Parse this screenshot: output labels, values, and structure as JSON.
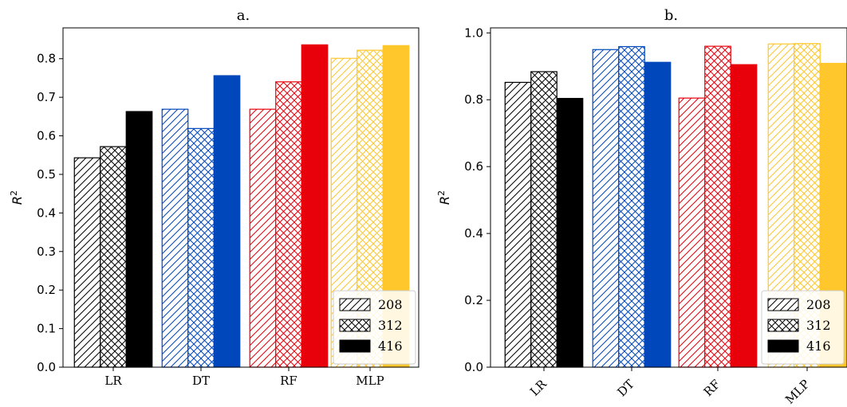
{
  "colors": {
    "LR": "#000000",
    "DT": "#0047bb",
    "RF": "#e8000b",
    "MLP": "#ffc72c"
  },
  "legend": [
    "208",
    "312",
    "416"
  ],
  "chart_data": [
    {
      "type": "bar",
      "title": "a.",
      "xlabel": "",
      "ylabel": "R",
      "ylabel_sup": "2",
      "categories": [
        "LR",
        "DT",
        "RF",
        "MLP"
      ],
      "series": [
        {
          "name": "208",
          "pattern": "hatch",
          "values": [
            0.543,
            0.669,
            0.669,
            0.801
          ]
        },
        {
          "name": "312",
          "pattern": "cross",
          "values": [
            0.572,
            0.619,
            0.74,
            0.822
          ]
        },
        {
          "name": "416",
          "pattern": "solid",
          "values": [
            0.663,
            0.756,
            0.836,
            0.834
          ]
        }
      ],
      "ylim": [
        0,
        0.88
      ],
      "yticks": [
        "0.0",
        "0.1",
        "0.2",
        "0.3",
        "0.4",
        "0.5",
        "0.6",
        "0.7",
        "0.8"
      ],
      "legend_position": "lower right",
      "rotate_xticks": false
    },
    {
      "type": "bar",
      "title": "b.",
      "xlabel": "",
      "ylabel": "R",
      "ylabel_sup": "2",
      "categories": [
        "LR",
        "DT",
        "RF",
        "MLP"
      ],
      "series": [
        {
          "name": "208",
          "pattern": "hatch",
          "values": [
            0.852,
            0.95,
            0.805,
            0.967
          ]
        },
        {
          "name": "312",
          "pattern": "cross",
          "values": [
            0.884,
            0.959,
            0.96,
            0.968
          ]
        },
        {
          "name": "416",
          "pattern": "solid",
          "values": [
            0.804,
            0.912,
            0.905,
            0.909
          ]
        }
      ],
      "ylim": [
        0,
        1.015
      ],
      "yticks": [
        "0.0",
        "0.2",
        "0.4",
        "0.6",
        "0.8",
        "1.0"
      ],
      "legend_position": "lower right",
      "rotate_xticks": true
    }
  ]
}
